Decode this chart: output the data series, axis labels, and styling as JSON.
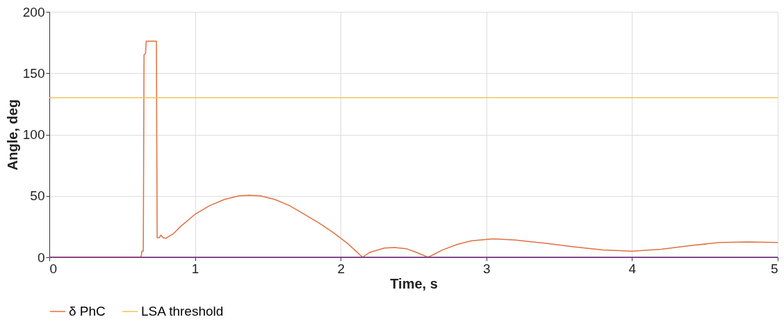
{
  "chart_data": {
    "type": "line",
    "xlabel": "Time, s",
    "ylabel": "Angle, deg",
    "xlim": [
      0,
      5
    ],
    "xticks": [
      0,
      1,
      2,
      3,
      4,
      5
    ],
    "ylim": [
      0,
      200
    ],
    "yticks": [
      0,
      50,
      100,
      150,
      200
    ],
    "grid": true,
    "legend": "bottom",
    "marker": "none",
    "line_style": "solid",
    "series": [
      {
        "name": "δ PhC",
        "color": "#e0703f",
        "x": [
          0,
          0.63,
          0.635,
          0.645,
          0.65,
          0.66,
          0.665,
          0.735,
          0.74,
          0.755,
          0.765,
          0.78,
          0.8,
          0.85,
          0.9,
          1.0,
          1.1,
          1.2,
          1.3,
          1.37,
          1.45,
          1.55,
          1.65,
          1.75,
          1.85,
          1.95,
          2.05,
          2.15,
          2.2,
          2.3,
          2.37,
          2.45,
          2.52,
          2.6,
          2.7,
          2.8,
          2.9,
          3.05,
          3.2,
          3.4,
          3.6,
          3.8,
          4.0,
          4.2,
          4.4,
          4.6,
          4.8,
          5.0
        ],
        "values": [
          0,
          0,
          5,
          5,
          165,
          166,
          176,
          176,
          16,
          16,
          18,
          16,
          15.5,
          19,
          25,
          35,
          42,
          47,
          50,
          50.5,
          50,
          47,
          42,
          35,
          28,
          20,
          11,
          0,
          4,
          7.5,
          8,
          7,
          4,
          0,
          6,
          10.5,
          13.5,
          15,
          14,
          11.5,
          8.5,
          6,
          5,
          6.5,
          9.5,
          12,
          12.5,
          12
        ]
      },
      {
        "name": "LSA threshold",
        "color": "#f2c45a",
        "x": [
          0,
          5
        ],
        "values": [
          130,
          130
        ]
      },
      {
        "color": "#7e2f8e",
        "x": [
          0,
          5
        ],
        "values": [
          0,
          0
        ]
      }
    ]
  }
}
